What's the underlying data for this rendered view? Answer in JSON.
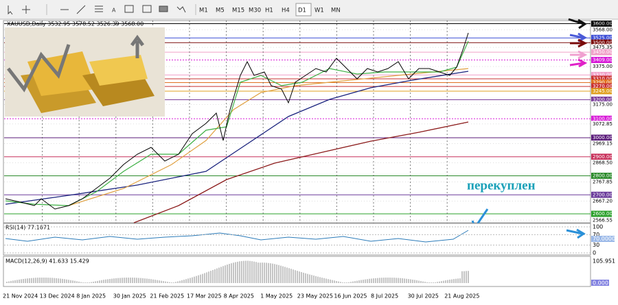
{
  "toolbar": {
    "timeframes": [
      "M1",
      "M5",
      "M15",
      "M30",
      "H1",
      "H4",
      "D1",
      "W1",
      "MN"
    ],
    "active": "D1"
  },
  "chart": {
    "header": "XAUUSD,Daily  3532.95 3578.52 3526.39 3568.00",
    "price_axis": [
      {
        "value": 3600,
        "label": "3600.00",
        "color": "#000000"
      },
      {
        "value": 3568,
        "label": "3568.00",
        "color": "#ffffff"
      },
      {
        "value": 3525,
        "label": "3525.00",
        "color": "#3d4fd6"
      },
      {
        "value": 3500,
        "label": "3500.00",
        "color": "#7a0a0a"
      },
      {
        "value": 3475.35,
        "label": "3475.35",
        "color": "#ffffff"
      },
      {
        "value": 3450,
        "label": "3450.00",
        "color": "#f0a0c8"
      },
      {
        "value": 3409,
        "label": "3409.00",
        "color": "#d81bd8"
      },
      {
        "value": 3375,
        "label": "3375.00",
        "color": "#ffffff"
      },
      {
        "value": 3330,
        "label": "3330.00",
        "color": "#f0a0c8"
      },
      {
        "value": 3310,
        "label": "3310.00",
        "color": "#c83030"
      },
      {
        "value": 3290,
        "label": "3290.00",
        "color": "#e07020"
      },
      {
        "value": 3270,
        "label": "3270.00",
        "color": "#c83030"
      },
      {
        "value": 3245,
        "label": "3245.00",
        "color": "#e0a020"
      },
      {
        "value": 3200,
        "label": "3200.00",
        "color": "#7a3a9a"
      },
      {
        "value": 3175,
        "label": "3175.00",
        "color": "#ffffff"
      },
      {
        "value": 3100,
        "label": "3100.00",
        "color": "#d81bd8"
      },
      {
        "value": 3072.85,
        "label": "3072.85",
        "color": "#ffffff"
      },
      {
        "value": 3000,
        "label": "3000.00",
        "color": "#5a1a7a"
      },
      {
        "value": 2969.15,
        "label": "2969.15",
        "color": "#ffffff"
      },
      {
        "value": 2900,
        "label": "2900.00",
        "color": "#c8305a"
      },
      {
        "value": 2868.5,
        "label": "2868.50",
        "color": "#ffffff"
      },
      {
        "value": 2800,
        "label": "2800.00",
        "color": "#2a8a2a"
      },
      {
        "value": 2767.85,
        "label": "2767.85",
        "color": "#ffffff"
      },
      {
        "value": 2700,
        "label": "2700.00",
        "color": "#6a3a9a"
      },
      {
        "value": 2667.2,
        "label": "2667.20",
        "color": "#ffffff"
      },
      {
        "value": 2600,
        "label": "2600.00",
        "color": "#2aa02a"
      },
      {
        "value": 2566.55,
        "label": "2566.55",
        "color": "#ffffff"
      }
    ],
    "dates": [
      "21 Nov 2024",
      "13 Dec 2024",
      "8 Jan 2025",
      "30 Jan 2025",
      "21 Feb 2025",
      "17 Mar 2025",
      "8 Apr 2025",
      "1 May 2025",
      "23 May 2025",
      "16 Jun 2025",
      "8 Jul 2025",
      "30 Jul 2025",
      "21 Aug 2025"
    ],
    "annotation": "перекуплен"
  },
  "rsi": {
    "header": "RSI(14) 77.1671",
    "levels": [
      {
        "value": 100,
        "label": "100"
      },
      {
        "value": 70,
        "label": "70"
      },
      {
        "value": 30,
        "label": "30"
      },
      {
        "value": 0,
        "label": "0"
      }
    ],
    "current": "70.0000"
  },
  "macd": {
    "header": "MACD(12,26,9) 41.633 15.429",
    "max": "105.951",
    "zero": "0.000"
  }
}
